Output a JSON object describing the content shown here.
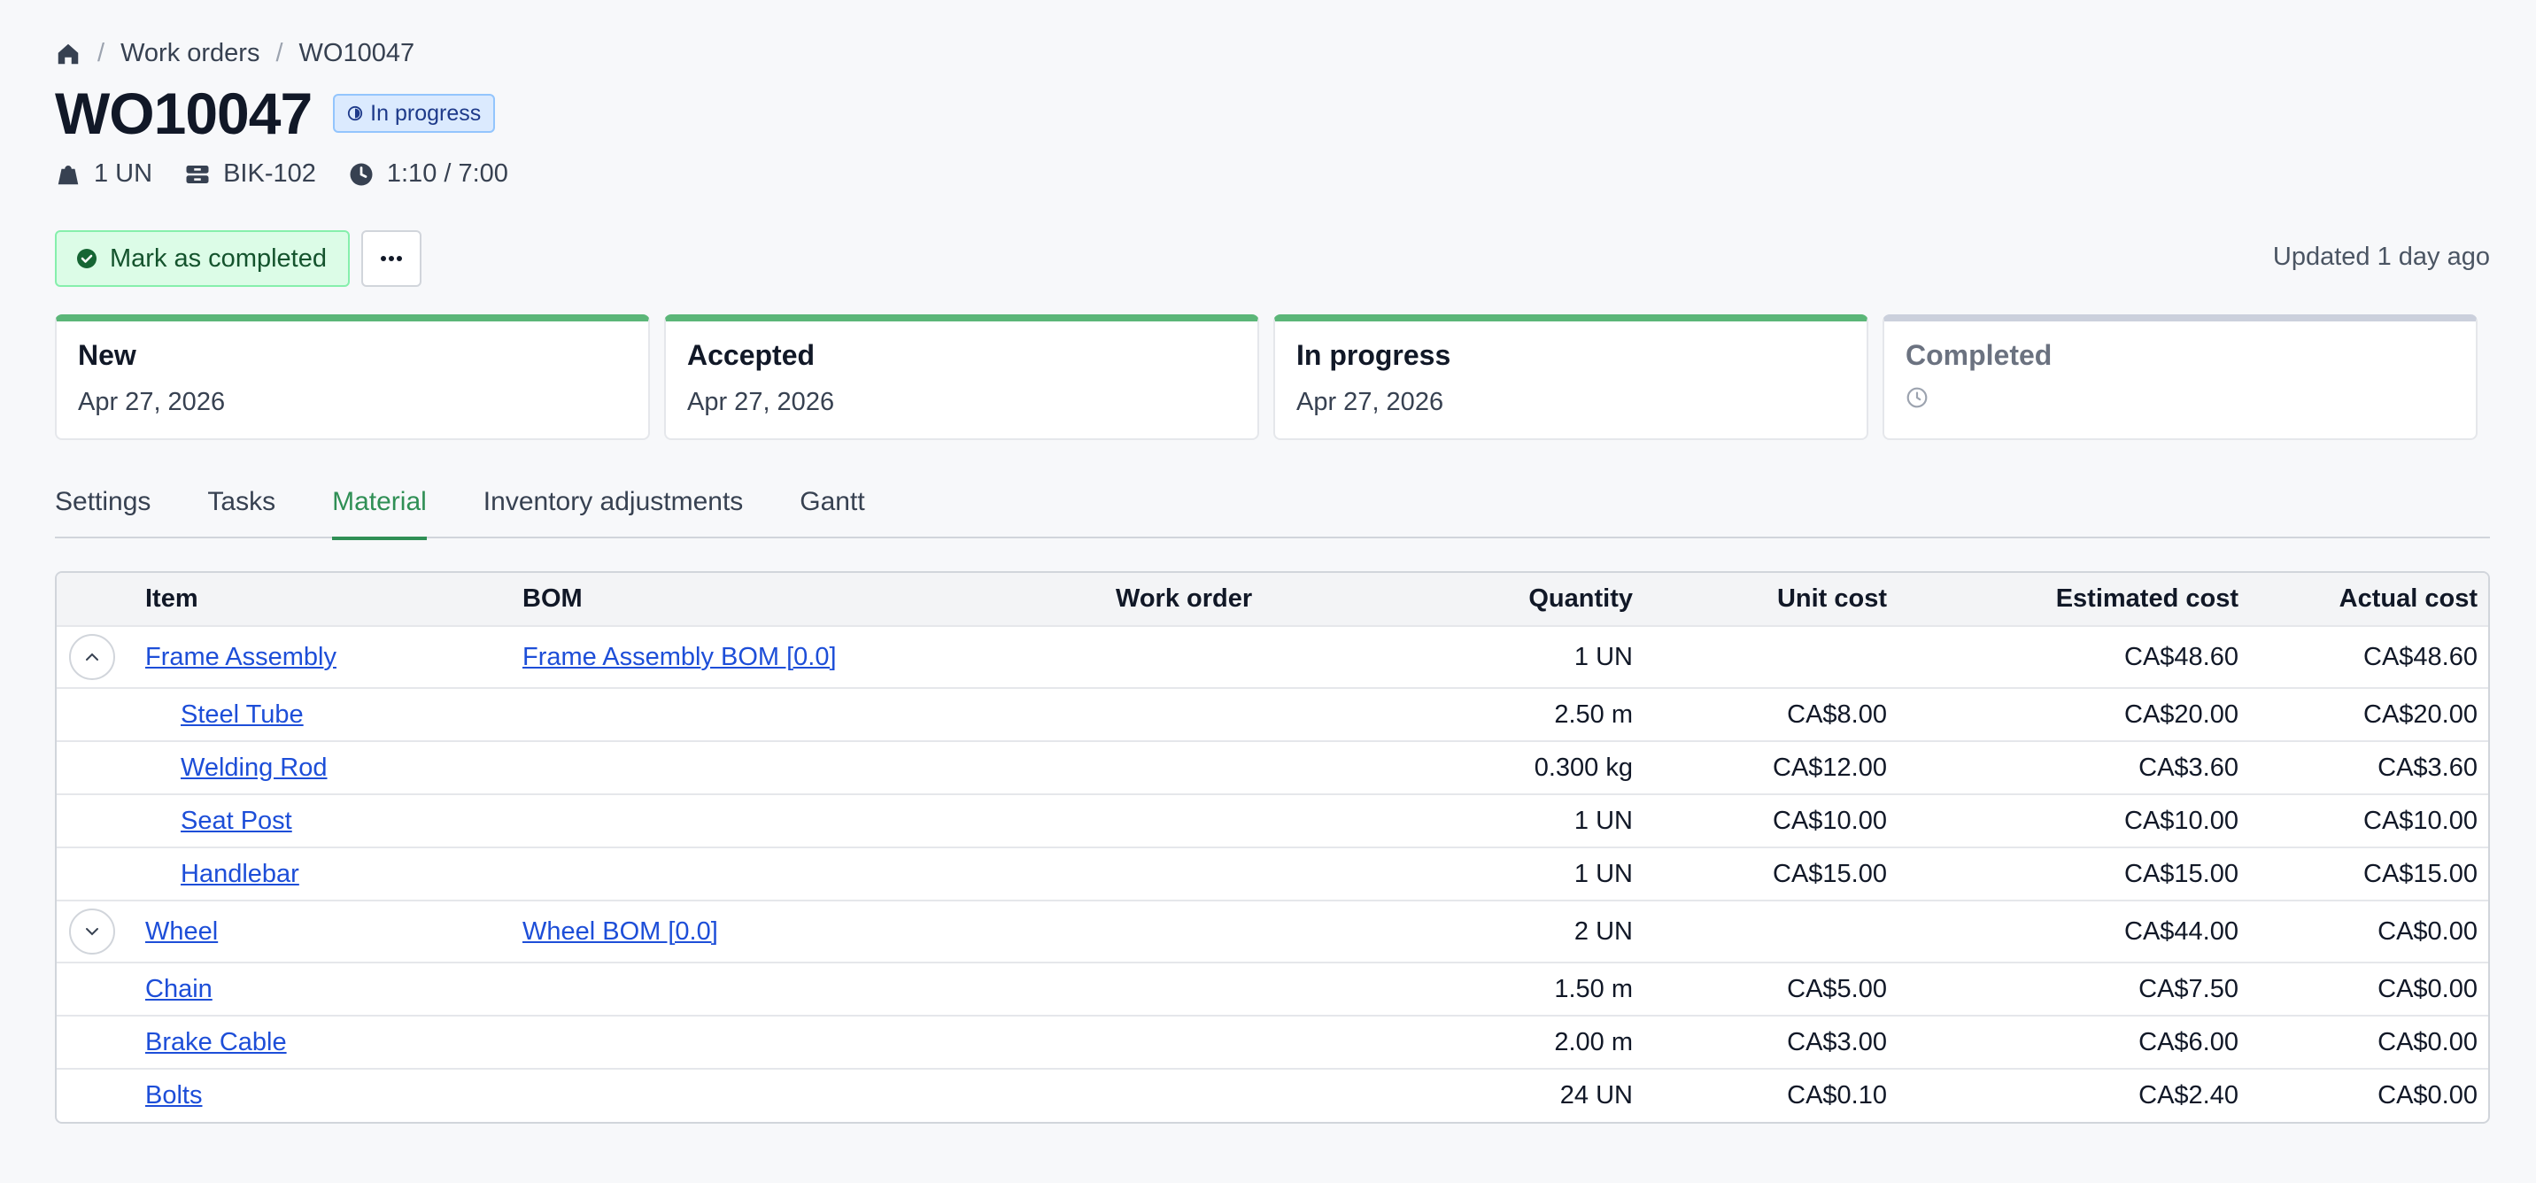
{
  "breadcrumb": {
    "items": [
      "Work orders",
      "WO10047"
    ]
  },
  "header": {
    "title": "WO10047",
    "status": "In progress",
    "meta": {
      "quantity": "1 UN",
      "sku": "BIK-102",
      "time": "1:10 / 7:00"
    }
  },
  "actions": {
    "complete_label": "Mark as completed",
    "more_label": "···",
    "updated": "Updated 1 day ago"
  },
  "stages": [
    {
      "name": "New",
      "date": "Apr 27, 2026",
      "done": true
    },
    {
      "name": "Accepted",
      "date": "Apr 27, 2026",
      "done": true
    },
    {
      "name": "In progress",
      "date": "Apr 27, 2026",
      "done": true
    },
    {
      "name": "Completed",
      "date": "",
      "done": false
    }
  ],
  "tabs": [
    "Settings",
    "Tasks",
    "Material",
    "Inventory adjustments",
    "Gantt"
  ],
  "active_tab": "Material",
  "table": {
    "columns": [
      "Item",
      "BOM",
      "Work order",
      "Quantity",
      "Unit cost",
      "Estimated cost",
      "Actual cost"
    ],
    "rows": [
      {
        "item": "Frame Assembly",
        "bom": "Frame Assembly BOM [0.0]",
        "work_order": "",
        "quantity": "1 UN",
        "unit_cost": "",
        "estimated": "CA$48.60",
        "actual": "CA$48.60"
      },
      {
        "item": "Steel Tube",
        "bom": "",
        "work_order": "",
        "quantity": "2.50 m",
        "unit_cost": "CA$8.00",
        "estimated": "CA$20.00",
        "actual": "CA$20.00"
      },
      {
        "item": "Welding Rod",
        "bom": "",
        "work_order": "",
        "quantity": "0.300 kg",
        "unit_cost": "CA$12.00",
        "estimated": "CA$3.60",
        "actual": "CA$3.60"
      },
      {
        "item": "Seat Post",
        "bom": "",
        "work_order": "",
        "quantity": "1 UN",
        "unit_cost": "CA$10.00",
        "estimated": "CA$10.00",
        "actual": "CA$10.00"
      },
      {
        "item": "Handlebar",
        "bom": "",
        "work_order": "",
        "quantity": "1 UN",
        "unit_cost": "CA$15.00",
        "estimated": "CA$15.00",
        "actual": "CA$15.00"
      },
      {
        "item": "Wheel",
        "bom": "Wheel BOM [0.0]",
        "work_order": "",
        "quantity": "2 UN",
        "unit_cost": "",
        "estimated": "CA$44.00",
        "actual": "CA$0.00"
      },
      {
        "item": "Chain",
        "bom": "",
        "work_order": "",
        "quantity": "1.50 m",
        "unit_cost": "CA$5.00",
        "estimated": "CA$7.50",
        "actual": "CA$0.00"
      },
      {
        "item": "Brake Cable",
        "bom": "",
        "work_order": "",
        "quantity": "2.00 m",
        "unit_cost": "CA$3.00",
        "estimated": "CA$6.00",
        "actual": "CA$0.00"
      },
      {
        "item": "Bolts",
        "bom": "",
        "work_order": "",
        "quantity": "24 UN",
        "unit_cost": "CA$0.10",
        "estimated": "CA$2.40",
        "actual": "CA$0.00"
      }
    ]
  }
}
